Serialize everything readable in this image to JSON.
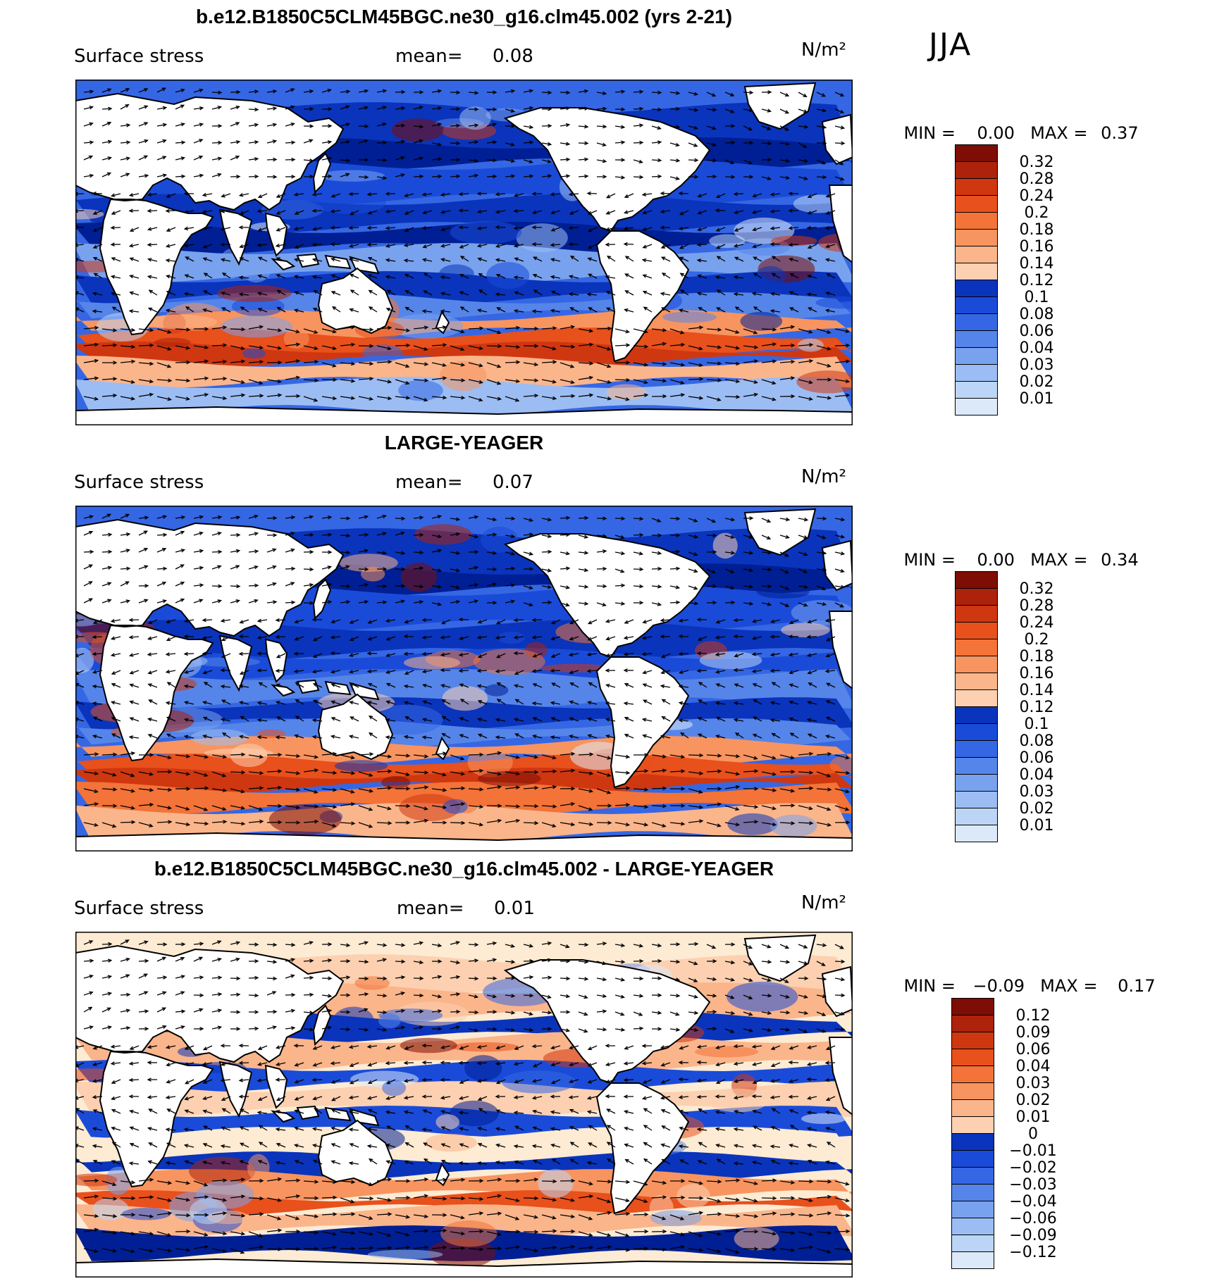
{
  "season": "JJA",
  "colors": {
    "pos": [
      "#fdebd3",
      "#fcd0b0",
      "#fbb58b",
      "#f8945f",
      "#f37338",
      "#e8501c",
      "#cf3710",
      "#ad220a",
      "#7d0d05"
    ],
    "neg": [
      "#dbe9f9",
      "#bcd5f6",
      "#9cbdf3",
      "#79a2ee",
      "#5685e9",
      "#3567e4",
      "#1a4bd8",
      "#0a34bb",
      "#001f94"
    ],
    "land": "#ffffff",
    "coast": "#000000"
  },
  "chart_data": [
    {
      "type": "heatmap",
      "title": "b.e12.B1850C5CLM45BGC.ne30_g16.clm45.002 (yrs 2-21)",
      "variable": "Surface stress",
      "mean_label": "mean=",
      "mean": "0.08",
      "units": "N/m²",
      "min_label": "MIN =",
      "min": "0.00",
      "max_label": "MAX =",
      "max": "0.37",
      "colorbar_levels": [
        "0.32",
        "0.28",
        "0.24",
        "0.2",
        "0.18",
        "0.16",
        "0.14",
        "0.12",
        "0.1",
        "0.08",
        "0.06",
        "0.04",
        "0.03",
        "0.02",
        "0.01"
      ],
      "vectors": "surface stress vectors overlaid"
    },
    {
      "type": "heatmap",
      "title": "LARGE-YEAGER",
      "variable": "Surface stress",
      "mean_label": "mean=",
      "mean": "0.07",
      "units": "N/m²",
      "min_label": "MIN =",
      "min": "0.00",
      "max_label": "MAX =",
      "max": "0.34",
      "colorbar_levels": [
        "0.32",
        "0.28",
        "0.24",
        "0.2",
        "0.18",
        "0.16",
        "0.14",
        "0.12",
        "0.1",
        "0.08",
        "0.06",
        "0.04",
        "0.03",
        "0.02",
        "0.01"
      ],
      "vectors": "surface stress vectors overlaid"
    },
    {
      "type": "heatmap",
      "title": "b.e12.B1850C5CLM45BGC.ne30_g16.clm45.002 - LARGE-YEAGER",
      "variable": "Surface stress",
      "mean_label": "mean=",
      "mean": "0.01",
      "units": "N/m²",
      "min_label": "MIN =",
      "min": "−0.09",
      "max_label": "MAX =",
      "max": "0.17",
      "colorbar_levels": [
        "0.12",
        "0.09",
        "0.06",
        "0.04",
        "0.03",
        "0.02",
        "0.01",
        "0",
        "−0.01",
        "−0.02",
        "−0.03",
        "−0.04",
        "−0.06",
        "−0.09",
        "−0.12"
      ],
      "vectors": "surface stress difference vectors overlaid"
    }
  ]
}
